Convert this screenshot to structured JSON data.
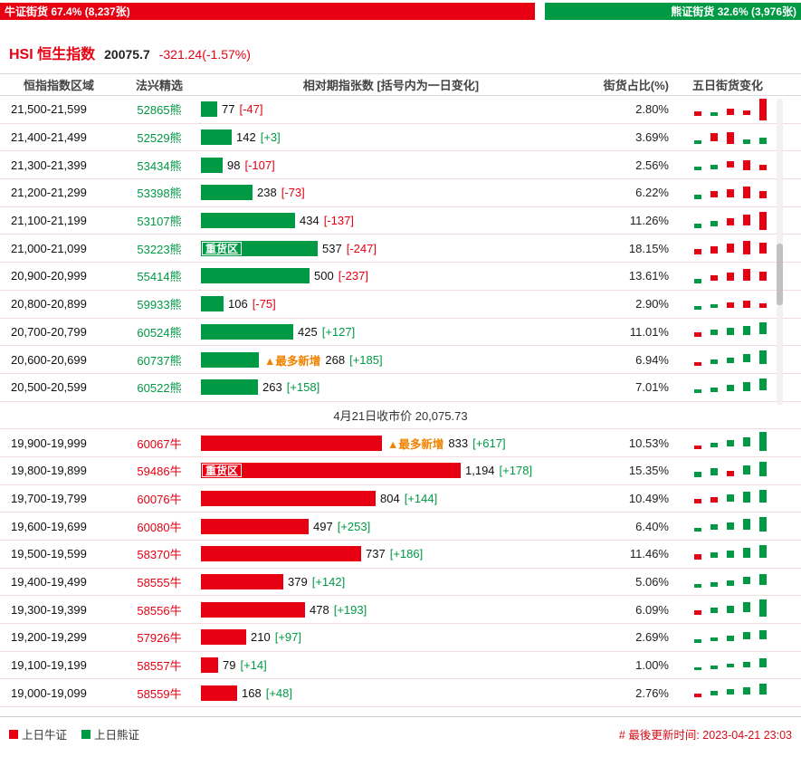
{
  "top_bar": {
    "bull_label": "牛证街货 67.4% (8,237张)",
    "bear_label": "熊证街货 32.6% (3,976张)",
    "bull_pct": 67.4,
    "bear_pct": 32.6
  },
  "header": {
    "title": "HSI 恒生指数",
    "price": "20075.7",
    "change": "-321.24(-1.57%)"
  },
  "columns": [
    "恒指指数区域",
    "法兴精选",
    "相对期指张数 [括号内为一日变化]",
    "街货占比(%)",
    "五日街货变化"
  ],
  "table": {
    "bar_scale": 0.24,
    "heavy_label": "重货区",
    "max_new_label": "▲最多新增",
    "close_note": "4月21日收市价 20,075.73",
    "bear_rows": [
      {
        "range": "21,500-21,599",
        "code": "52865熊",
        "value": 77,
        "value_label": "77",
        "change": -47,
        "change_label": "[-47]",
        "pct": "2.80%",
        "spark": [
          [
            "r",
            5,
            15
          ],
          [
            "g",
            4,
            16
          ],
          [
            "r",
            7,
            12
          ],
          [
            "r",
            5,
            14
          ],
          [
            "r",
            24,
            1
          ]
        ]
      },
      {
        "range": "21,400-21,499",
        "code": "52529熊",
        "value": 142,
        "value_label": "142",
        "change": 3,
        "change_label": "[+3]",
        "pct": "3.69%",
        "spark": [
          [
            "g",
            4,
            16
          ],
          [
            "r",
            9,
            8
          ],
          [
            "r",
            13,
            7
          ],
          [
            "g",
            5,
            15
          ],
          [
            "g",
            7,
            13
          ]
        ]
      },
      {
        "range": "21,300-21,399",
        "code": "53434熊",
        "value": 98,
        "value_label": "98",
        "change": -107,
        "change_label": "[-107]",
        "pct": "2.56%",
        "spark": [
          [
            "g",
            4,
            15
          ],
          [
            "g",
            5,
            13
          ],
          [
            "r",
            7,
            9
          ],
          [
            "r",
            11,
            8
          ],
          [
            "r",
            6,
            13
          ]
        ]
      },
      {
        "range": "21,200-21,299",
        "code": "53398熊",
        "value": 238,
        "value_label": "238",
        "change": -73,
        "change_label": "[-73]",
        "pct": "6.22%",
        "spark": [
          [
            "g",
            5,
            15
          ],
          [
            "r",
            7,
            11
          ],
          [
            "r",
            9,
            9
          ],
          [
            "r",
            13,
            6
          ],
          [
            "r",
            8,
            11
          ]
        ]
      },
      {
        "range": "21,100-21,199",
        "code": "53107熊",
        "value": 434,
        "value_label": "434",
        "change": -137,
        "change_label": "[-137]",
        "pct": "11.26%",
        "spark": [
          [
            "g",
            5,
            16
          ],
          [
            "g",
            6,
            13
          ],
          [
            "r",
            8,
            10
          ],
          [
            "r",
            12,
            6
          ],
          [
            "r",
            20,
            3
          ]
        ]
      },
      {
        "range": "21,000-21,099",
        "code": "53223熊",
        "value": 537,
        "value_label": "537",
        "change": -247,
        "change_label": "[-247]",
        "pct": "18.15%",
        "heavy": true,
        "spark": [
          [
            "r",
            6,
            14
          ],
          [
            "r",
            8,
            11
          ],
          [
            "r",
            10,
            8
          ],
          [
            "r",
            15,
            5
          ],
          [
            "r",
            12,
            7
          ]
        ]
      },
      {
        "range": "20,900-20,999",
        "code": "55414熊",
        "value": 500,
        "value_label": "500",
        "change": -237,
        "change_label": "[-237]",
        "pct": "13.61%",
        "spark": [
          [
            "g",
            5,
            16
          ],
          [
            "r",
            6,
            12
          ],
          [
            "r",
            9,
            9
          ],
          [
            "r",
            13,
            5
          ],
          [
            "r",
            10,
            8
          ]
        ]
      },
      {
        "range": "20,800-20,899",
        "code": "59933熊",
        "value": 106,
        "value_label": "106",
        "change": -75,
        "change_label": "[-75]",
        "pct": "2.90%",
        "spark": [
          [
            "g",
            4,
            15
          ],
          [
            "g",
            4,
            13
          ],
          [
            "r",
            6,
            11
          ],
          [
            "r",
            8,
            9
          ],
          [
            "r",
            5,
            12
          ]
        ]
      },
      {
        "range": "20,700-20,799",
        "code": "60524熊",
        "value": 425,
        "value_label": "425",
        "change": 127,
        "change_label": "[+127]",
        "pct": "11.01%",
        "spark": [
          [
            "r",
            5,
            14
          ],
          [
            "g",
            6,
            11
          ],
          [
            "g",
            8,
            9
          ],
          [
            "g",
            10,
            7
          ],
          [
            "g",
            13,
            3
          ]
        ]
      },
      {
        "range": "20,600-20,699",
        "code": "60737熊",
        "value": 268,
        "value_label": "268",
        "change": 185,
        "change_label": "[+185]",
        "pct": "6.94%",
        "max_new": true,
        "spark": [
          [
            "r",
            4,
            16
          ],
          [
            "g",
            5,
            13
          ],
          [
            "g",
            6,
            11
          ],
          [
            "g",
            9,
            7
          ],
          [
            "g",
            15,
            3
          ]
        ]
      },
      {
        "range": "20,500-20,599",
        "code": "60522熊",
        "value": 263,
        "value_label": "263",
        "change": 158,
        "change_label": "[+158]",
        "pct": "7.01%",
        "spark": [
          [
            "g",
            4,
            15
          ],
          [
            "g",
            5,
            13
          ],
          [
            "g",
            7,
            10
          ],
          [
            "g",
            10,
            7
          ],
          [
            "g",
            13,
            3
          ]
        ]
      }
    ],
    "bull_rows": [
      {
        "range": "19,900-19,999",
        "code": "60067牛",
        "value": 833,
        "value_label": "833",
        "change": 617,
        "change_label": "[+617]",
        "pct": "10.53%",
        "max_new": true,
        "spark": [
          [
            "r",
            4,
            16
          ],
          [
            "g",
            5,
            13
          ],
          [
            "g",
            7,
            10
          ],
          [
            "g",
            10,
            7
          ],
          [
            "g",
            21,
            1
          ]
        ]
      },
      {
        "range": "19,800-19,899",
        "code": "59486牛",
        "value": 1194,
        "value_label": "1,194",
        "change": 178,
        "change_label": "[+178]",
        "pct": "15.35%",
        "heavy": true,
        "spark": [
          [
            "g",
            6,
            14
          ],
          [
            "g",
            8,
            10
          ],
          [
            "r",
            6,
            13
          ],
          [
            "g",
            10,
            7
          ],
          [
            "g",
            16,
            3
          ]
        ]
      },
      {
        "range": "19,700-19,799",
        "code": "60076牛",
        "value": 804,
        "value_label": "804",
        "change": 144,
        "change_label": "[+144]",
        "pct": "10.49%",
        "spark": [
          [
            "r",
            5,
            14
          ],
          [
            "r",
            6,
            12
          ],
          [
            "g",
            8,
            9
          ],
          [
            "g",
            12,
            6
          ],
          [
            "g",
            14,
            4
          ]
        ]
      },
      {
        "range": "19,600-19,699",
        "code": "60080牛",
        "value": 497,
        "value_label": "497",
        "change": 253,
        "change_label": "[+253]",
        "pct": "6.40%",
        "spark": [
          [
            "g",
            4,
            15
          ],
          [
            "g",
            6,
            11
          ],
          [
            "g",
            8,
            9
          ],
          [
            "g",
            12,
            5
          ],
          [
            "g",
            16,
            3
          ]
        ]
      },
      {
        "range": "19,500-19,599",
        "code": "58370牛",
        "value": 737,
        "value_label": "737",
        "change": 186,
        "change_label": "[+186]",
        "pct": "11.46%",
        "spark": [
          [
            "r",
            6,
            13
          ],
          [
            "g",
            6,
            11
          ],
          [
            "g",
            8,
            9
          ],
          [
            "g",
            11,
            6
          ],
          [
            "g",
            14,
            3
          ]
        ]
      },
      {
        "range": "19,400-19,499",
        "code": "58555牛",
        "value": 379,
        "value_label": "379",
        "change": 142,
        "change_label": "[+142]",
        "pct": "5.06%",
        "spark": [
          [
            "g",
            4,
            15
          ],
          [
            "g",
            5,
            13
          ],
          [
            "g",
            6,
            11
          ],
          [
            "g",
            8,
            7
          ],
          [
            "g",
            12,
            4
          ]
        ]
      },
      {
        "range": "19,300-19,399",
        "code": "58556牛",
        "value": 478,
        "value_label": "478",
        "change": 193,
        "change_label": "[+193]",
        "pct": "6.09%",
        "spark": [
          [
            "r",
            5,
            14
          ],
          [
            "g",
            6,
            11
          ],
          [
            "g",
            8,
            9
          ],
          [
            "g",
            11,
            5
          ],
          [
            "g",
            19,
            2
          ]
        ]
      },
      {
        "range": "19,200-19,299",
        "code": "57926牛",
        "value": 210,
        "value_label": "210",
        "change": 97,
        "change_label": "[+97]",
        "pct": "2.69%",
        "spark": [
          [
            "g",
            4,
            15
          ],
          [
            "g",
            4,
            13
          ],
          [
            "g",
            6,
            11
          ],
          [
            "g",
            8,
            7
          ],
          [
            "g",
            10,
            5
          ]
        ]
      },
      {
        "range": "19,100-19,199",
        "code": "58557牛",
        "value": 79,
        "value_label": "79",
        "change": 14,
        "change_label": "[+14]",
        "pct": "1.00%",
        "spark": [
          [
            "g",
            3,
            15
          ],
          [
            "g",
            4,
            13
          ],
          [
            "g",
            4,
            11
          ],
          [
            "g",
            6,
            9
          ],
          [
            "g",
            10,
            5
          ]
        ]
      },
      {
        "range": "19,000-19,099",
        "code": "58559牛",
        "value": 168,
        "value_label": "168",
        "change": 48,
        "change_label": "[+48]",
        "pct": "2.76%",
        "spark": [
          [
            "r",
            4,
            14
          ],
          [
            "g",
            5,
            11
          ],
          [
            "g",
            6,
            9
          ],
          [
            "g",
            8,
            7
          ],
          [
            "g",
            12,
            3
          ]
        ]
      }
    ]
  },
  "footer": {
    "legend": [
      {
        "label": "上日牛证",
        "color": "#e60012"
      },
      {
        "label": "上日熊证",
        "color": "#009944"
      }
    ],
    "updated": "# 最後更新时间: 2023-04-21 23:03"
  },
  "colors": {
    "bull_red": "#e60012",
    "bear_green": "#009944",
    "max_new_orange": "#f08300",
    "row_border": "#f3dcdc"
  },
  "chart_data": {
    "type": "bar",
    "orientation": "horizontal",
    "title": "HSI 恒生指数 牛熊证街货分布",
    "xlabel": "相对期指张数 [括号内为一日变化]",
    "ylabel": "恒指指数区域",
    "legend_position": "bottom",
    "series": [
      {
        "name": "熊证(上日熊证)",
        "color": "#009944",
        "categories": [
          "21,500-21,599",
          "21,400-21,499",
          "21,300-21,399",
          "21,200-21,299",
          "21,100-21,199",
          "21,000-21,099",
          "20,900-20,999",
          "20,800-20,899",
          "20,700-20,799",
          "20,600-20,699",
          "20,500-20,599"
        ],
        "values": [
          77,
          142,
          98,
          238,
          434,
          537,
          500,
          106,
          425,
          268,
          263
        ],
        "one_day_change": [
          -47,
          3,
          -107,
          -73,
          -137,
          -247,
          -237,
          -75,
          127,
          185,
          158
        ],
        "street_pct": [
          2.8,
          3.69,
          2.56,
          6.22,
          11.26,
          18.15,
          13.61,
          2.9,
          11.01,
          6.94,
          7.01
        ]
      },
      {
        "name": "牛证(上日牛证)",
        "color": "#e60012",
        "categories": [
          "19,900-19,999",
          "19,800-19,899",
          "19,700-19,799",
          "19,600-19,699",
          "19,500-19,599",
          "19,400-19,499",
          "19,300-19,399",
          "19,200-19,299",
          "19,100-19,199",
          "19,000-19,099"
        ],
        "values": [
          833,
          1194,
          804,
          497,
          737,
          379,
          478,
          210,
          79,
          168
        ],
        "one_day_change": [
          617,
          178,
          144,
          253,
          186,
          142,
          193,
          97,
          14,
          48
        ],
        "street_pct": [
          10.53,
          15.35,
          10.49,
          6.4,
          11.46,
          5.06,
          6.09,
          2.69,
          1.0,
          2.76
        ]
      }
    ],
    "annotations": {
      "close_price": "4月21日收市价 20,075.73",
      "bull_total": "牛证街货 67.4% (8,237张)",
      "bear_total": "熊证街货 32.6% (3,976张)",
      "heavy_zone_rows": [
        "21,000-21,099",
        "19,800-19,899"
      ],
      "max_new_rows": [
        "20,600-20,699",
        "19,900-19,999"
      ]
    }
  }
}
